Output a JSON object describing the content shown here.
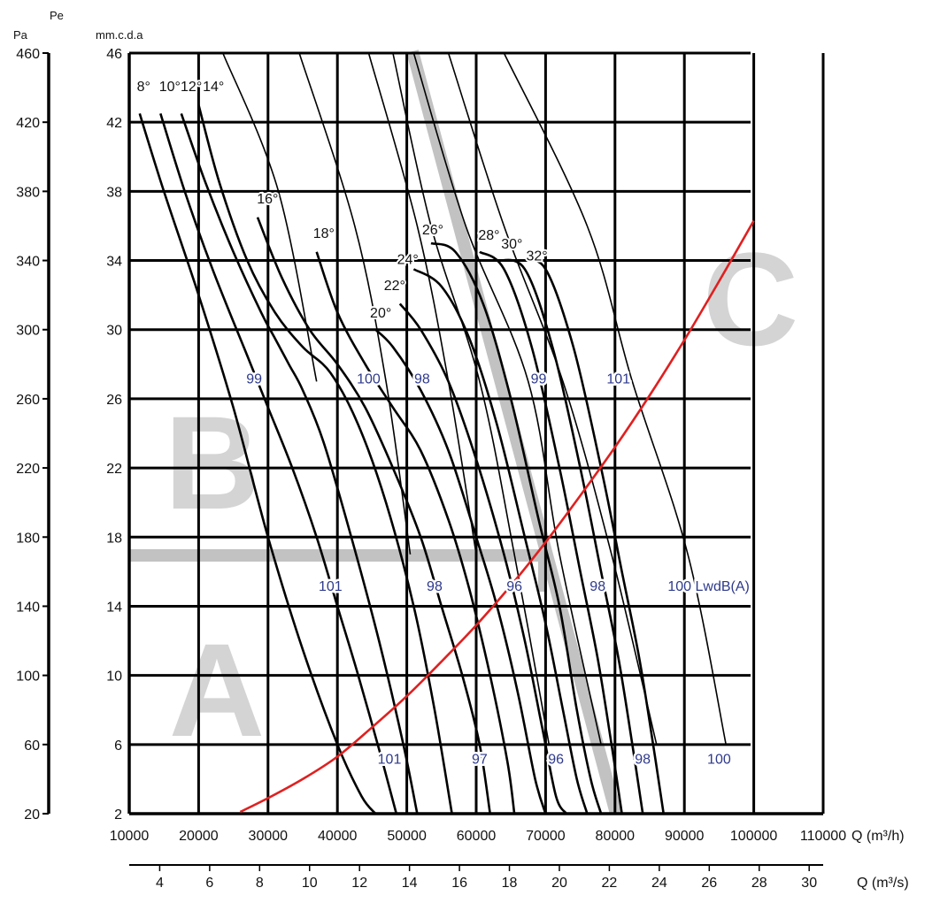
{
  "chart_data": {
    "type": "line",
    "title": "",
    "axes": {
      "pa": {
        "unit_top": "Pe",
        "label": "Pa",
        "min": 20,
        "max": 460,
        "ticks": [
          "20",
          "60",
          "100",
          "140",
          "180",
          "220",
          "260",
          "300",
          "340",
          "380",
          "420",
          "460"
        ]
      },
      "mm": {
        "label": "mm.c.d.a",
        "min": 2,
        "max": 46,
        "ticks": [
          "2",
          "6",
          "10",
          "14",
          "18",
          "22",
          "26",
          "30",
          "34",
          "38",
          "42",
          "46"
        ]
      },
      "q_h": {
        "label": "Q (m³/h)",
        "min": 10000,
        "max": 110000,
        "ticks": [
          "10000",
          "20000",
          "30000",
          "40000",
          "50000",
          "60000",
          "70000",
          "80000",
          "90000",
          "100000",
          "110000"
        ]
      },
      "q_s": {
        "label": "Q (m³/s)",
        "min": 2.78,
        "max": 30.56,
        "ticks": [
          "4",
          "6",
          "8",
          "10",
          "12",
          "14",
          "16",
          "18",
          "20",
          "22",
          "24",
          "26",
          "28",
          "30"
        ]
      }
    },
    "zones": [
      "A",
      "B",
      "C"
    ],
    "series": [
      {
        "name": "8°",
        "x": [
          11500,
          15000,
          20000,
          25000,
          30000,
          35000,
          40000,
          43500,
          45500
        ],
        "y": [
          42.5,
          38,
          32,
          25.5,
          18,
          11.5,
          6,
          3,
          2
        ]
      },
      {
        "name": "10°",
        "x": [
          14500,
          18000,
          22000,
          27000,
          30000,
          33500,
          37000,
          40000,
          43000,
          46500,
          48500
        ],
        "y": [
          42.5,
          38,
          33.5,
          28.5,
          25.5,
          22,
          18,
          14,
          10,
          5,
          2
        ]
      },
      {
        "name": "12°",
        "x": [
          17500,
          21000,
          25000,
          29000,
          31000,
          33000,
          35000,
          38000,
          42000,
          46000,
          49500,
          51500
        ],
        "y": [
          42.5,
          38.5,
          34.5,
          31,
          29.5,
          28,
          26.5,
          23.5,
          18,
          12,
          6,
          2
        ]
      },
      {
        "name": "14°",
        "x": [
          20000,
          23000,
          27000,
          31000,
          35000,
          39000,
          43000,
          47000,
          51000,
          54000,
          56500
        ],
        "y": [
          43,
          38.5,
          34,
          31,
          29,
          27.5,
          24.5,
          20,
          14,
          8,
          2
        ]
      },
      {
        "name": "16°",
        "x": [
          28500,
          32000,
          36000,
          40000,
          44000,
          48000,
          52000,
          55000,
          58000,
          60500,
          62000
        ],
        "y": [
          36.5,
          33,
          30,
          28,
          25.5,
          22,
          18,
          14,
          10,
          6,
          2
        ]
      },
      {
        "name": "18°",
        "x": [
          37000,
          40000,
          44000,
          48000,
          52000,
          56000,
          59000,
          62000,
          64500,
          65500
        ],
        "y": [
          34.5,
          31,
          28,
          25.5,
          23,
          19,
          15,
          10,
          5,
          2
        ]
      },
      {
        "name": "20°",
        "x": [
          45500,
          48000,
          52000,
          56000,
          60000,
          63000,
          66000,
          68500,
          70000
        ],
        "y": [
          30,
          29,
          26.5,
          23,
          18,
          14,
          9,
          4,
          2
        ]
      },
      {
        "name": "22°",
        "x": [
          49000,
          52000,
          56000,
          60000,
          64000,
          67000,
          69500,
          71500,
          73000
        ],
        "y": [
          31.5,
          30,
          27,
          22.5,
          17,
          12,
          7,
          3,
          2
        ]
      },
      {
        "name": "24°",
        "x": [
          51000,
          55000,
          59000,
          63000,
          67000,
          70000,
          72500,
          74500,
          76000
        ],
        "y": [
          33.5,
          32.5,
          29.5,
          24.5,
          18,
          13,
          8,
          4,
          2
        ]
      },
      {
        "name": "26°",
        "x": [
          53500,
          57000,
          61000,
          65000,
          69000,
          72000,
          74500,
          76500,
          78000
        ],
        "y": [
          35,
          34.5,
          31.5,
          26,
          19,
          14,
          8,
          4,
          2
        ]
      },
      {
        "name": "28°",
        "x": [
          60500,
          64000,
          68000,
          72000,
          75000,
          77500,
          79500,
          81000
        ],
        "y": [
          34.5,
          33.5,
          29,
          22,
          16,
          11,
          6,
          2
        ]
      },
      {
        "name": "30°",
        "x": [
          63000,
          67000,
          71000,
          75000,
          78000,
          80500,
          82500,
          84000
        ],
        "y": [
          34,
          33.5,
          29,
          22,
          16,
          11,
          6,
          2
        ]
      },
      {
        "name": "32°",
        "x": [
          66500,
          70000,
          74000,
          78000,
          81000,
          83500,
          85500,
          87000
        ],
        "y": [
          34,
          33.5,
          29,
          22,
          16,
          11,
          6,
          2
        ]
      }
    ],
    "system_curve": {
      "name": "system",
      "color": "#e02020",
      "x": [
        26000,
        30000,
        35000,
        40000,
        45000,
        50000,
        55000,
        60000,
        65000,
        70000,
        75000,
        80000,
        85000,
        90000,
        95000,
        100000
      ],
      "y": [
        2.1,
        2.9,
        4,
        5.3,
        7,
        8.8,
        10.8,
        12.9,
        15.2,
        17.7,
        20.4,
        23.2,
        26.2,
        29.4,
        32.8,
        36.3
      ]
    },
    "sound_iso_lines": [
      {
        "x": [
          23500,
          31500,
          37000
        ],
        "y": [
          46,
          38,
          27
        ]
      },
      {
        "x": [
          34500,
          42500,
          47000,
          50500
        ],
        "y": [
          46,
          36,
          27,
          17
        ]
      },
      {
        "x": [
          44500,
          51500,
          56000,
          60000
        ],
        "y": [
          46,
          36,
          27,
          17
        ]
      },
      {
        "x": [
          48000,
          53500,
          60500,
          65500,
          70500
        ],
        "y": [
          46,
          36,
          27,
          17,
          6
        ]
      },
      {
        "x": [
          51000,
          58500,
          67500,
          72000,
          78000
        ],
        "y": [
          46,
          36,
          27,
          17,
          6
        ]
      },
      {
        "x": [
          56000,
          64000,
          72500,
          79500,
          86000
        ],
        "y": [
          46,
          36,
          27,
          17,
          6
        ]
      },
      {
        "x": [
          64000,
          76000,
          82500,
          90500,
          96000
        ],
        "y": [
          46,
          36,
          27,
          17,
          6
        ]
      }
    ],
    "annotations": [
      {
        "text": "8°",
        "x": 11100,
        "y": 43.8
      },
      {
        "text": "10°",
        "x": 14300,
        "y": 43.8
      },
      {
        "text": "12°",
        "x": 17400,
        "y": 43.8
      },
      {
        "text": "14°",
        "x": 20600,
        "y": 43.8
      },
      {
        "text": "16°",
        "x": 28400,
        "y": 37.3
      },
      {
        "text": "18°",
        "x": 36500,
        "y": 35.3
      },
      {
        "text": "20°",
        "x": 44700,
        "y": 30.7
      },
      {
        "text": "22°",
        "x": 46700,
        "y": 32.3
      },
      {
        "text": "24°",
        "x": 48600,
        "y": 33.8
      },
      {
        "text": "26°",
        "x": 52200,
        "y": 35.5
      },
      {
        "text": "28°",
        "x": 60300,
        "y": 35.2
      },
      {
        "text": "30°",
        "x": 63600,
        "y": 34.7
      },
      {
        "text": "32°",
        "x": 67200,
        "y": 34.0
      }
    ],
    "sound_labels": [
      {
        "text": "99",
        "x": 28000,
        "y": 26.9
      },
      {
        "text": "100",
        "x": 44500,
        "y": 26.9
      },
      {
        "text": "98",
        "x": 52200,
        "y": 26.9
      },
      {
        "text": "99",
        "x": 69000,
        "y": 26.9
      },
      {
        "text": "101",
        "x": 80500,
        "y": 26.9
      },
      {
        "text": "101",
        "x": 39000,
        "y": 14.9
      },
      {
        "text": "98",
        "x": 54000,
        "y": 14.9
      },
      {
        "text": "96",
        "x": 65500,
        "y": 14.9
      },
      {
        "text": "98",
        "x": 77500,
        "y": 14.9
      },
      {
        "text": "100 LwdB(A)",
        "x": 93500,
        "y": 14.9
      },
      {
        "text": "101",
        "x": 47500,
        "y": 4.9
      },
      {
        "text": "97",
        "x": 60500,
        "y": 4.9
      },
      {
        "text": "96",
        "x": 71500,
        "y": 4.9
      },
      {
        "text": "98",
        "x": 84000,
        "y": 4.9
      },
      {
        "text": "100",
        "x": 95000,
        "y": 4.9
      }
    ]
  }
}
